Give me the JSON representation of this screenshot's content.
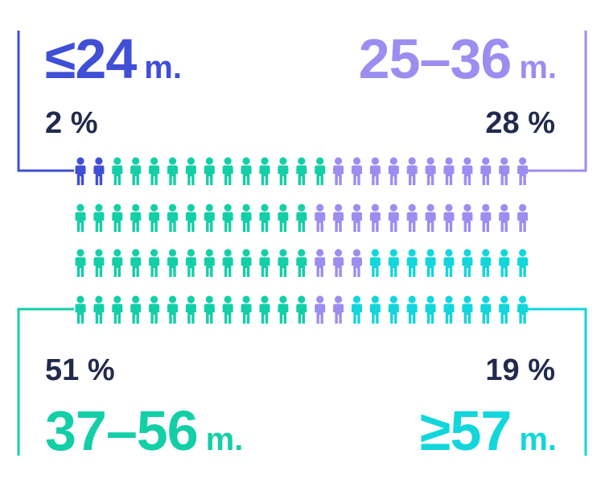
{
  "chart_data": {
    "type": "pictogram",
    "total_icons": 100,
    "rows": 4,
    "per_row": 25,
    "categories": [
      {
        "label": "≤24",
        "unit": "m.",
        "percent_label": "2 %",
        "value": 2,
        "color": "#3f4fd6"
      },
      {
        "label": "25–36",
        "unit": "m.",
        "percent_label": "28 %",
        "value": 28,
        "color": "#9b8ef0"
      },
      {
        "label": "37–56",
        "unit": "m.",
        "percent_label": "51 %",
        "value": 51,
        "color": "#13cfa7"
      },
      {
        "label": "≥57",
        "unit": "m.",
        "percent_label": "19 %",
        "value": 19,
        "color": "#12d6dc"
      }
    ],
    "rows_order": [
      [
        [
          0,
          2
        ],
        [
          2,
          12
        ],
        [
          1,
          11
        ]
      ],
      [
        [
          2,
          13
        ],
        [
          1,
          12
        ]
      ],
      [
        [
          2,
          13
        ],
        [
          1,
          3
        ],
        [
          3,
          9
        ]
      ],
      [
        [
          2,
          13
        ],
        [
          1,
          2
        ],
        [
          3,
          10
        ]
      ]
    ]
  }
}
